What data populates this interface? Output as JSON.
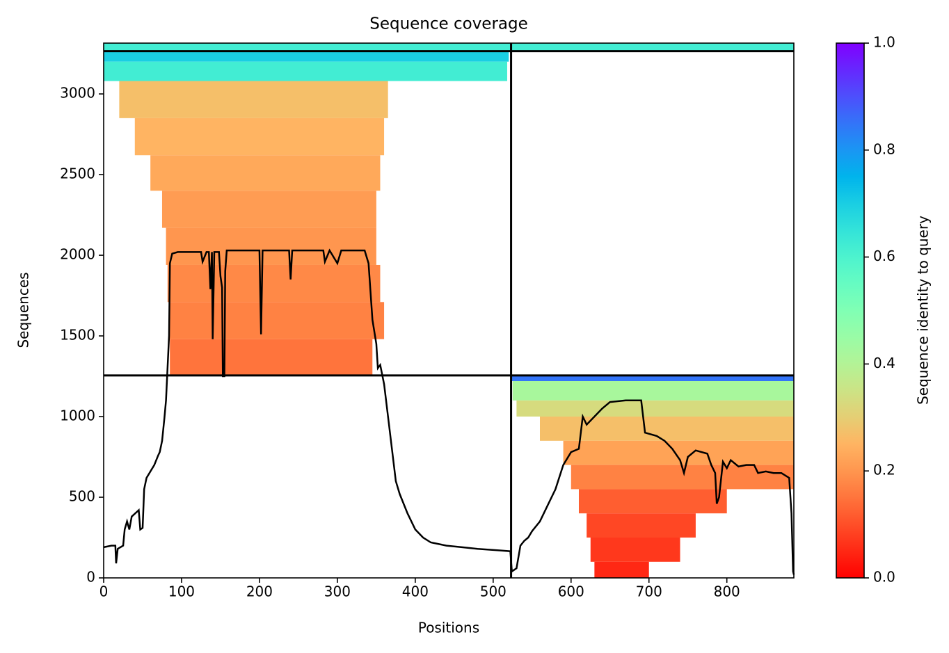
{
  "chart_data": {
    "type": "coverage",
    "title": "Sequence coverage",
    "xlabel": "Positions",
    "ylabel": "Sequences",
    "xlim": [
      0,
      886
    ],
    "ylim": [
      0,
      3315
    ],
    "xticks": [
      0,
      100,
      200,
      300,
      400,
      500,
      600,
      700,
      800
    ],
    "yticks": [
      0,
      500,
      1000,
      1500,
      2000,
      2500,
      3000
    ],
    "colorbar": {
      "label": "Sequence identity to query",
      "lim": [
        0,
        1
      ],
      "ticks": [
        {
          "value": 0,
          "label": "0.0"
        },
        0.2,
        0.4,
        0.6,
        0.8,
        {
          "value": 1,
          "label": "1.0"
        }
      ]
    },
    "bands": [
      {
        "x0": 0,
        "x1": 886,
        "y0": 3265,
        "y1": 3315,
        "identity": 0.62
      },
      {
        "x0": 0,
        "x1": 520,
        "y0": 3200,
        "y1": 3265,
        "identity": 0.7
      },
      {
        "x0": 0,
        "x1": 518,
        "y0": 3080,
        "y1": 3200,
        "identity": 0.62
      },
      {
        "x0": 20,
        "x1": 365,
        "y0": 2850,
        "y1": 3080,
        "identity": 0.27
      },
      {
        "x0": 40,
        "x1": 360,
        "y0": 2620,
        "y1": 2850,
        "identity": 0.25
      },
      {
        "x0": 60,
        "x1": 355,
        "y0": 2400,
        "y1": 2620,
        "identity": 0.23
      },
      {
        "x0": 75,
        "x1": 350,
        "y0": 2170,
        "y1": 2400,
        "identity": 0.21
      },
      {
        "x0": 80,
        "x1": 350,
        "y0": 1940,
        "y1": 2170,
        "identity": 0.2
      },
      {
        "x0": 82,
        "x1": 355,
        "y0": 1710,
        "y1": 1940,
        "identity": 0.18
      },
      {
        "x0": 84,
        "x1": 360,
        "y0": 1480,
        "y1": 1710,
        "identity": 0.17
      },
      {
        "x0": 85,
        "x1": 345,
        "y0": 1255,
        "y1": 1480,
        "identity": 0.15
      },
      {
        "x0": 523,
        "x1": 886,
        "y0": 1220,
        "y1": 1255,
        "identity": 0.85
      },
      {
        "x0": 525,
        "x1": 886,
        "y0": 1100,
        "y1": 1220,
        "identity": 0.42
      },
      {
        "x0": 530,
        "x1": 886,
        "y0": 1000,
        "y1": 1100,
        "identity": 0.33
      },
      {
        "x0": 560,
        "x1": 886,
        "y0": 850,
        "y1": 1000,
        "identity": 0.27
      },
      {
        "x0": 590,
        "x1": 886,
        "y0": 700,
        "y1": 850,
        "identity": 0.22
      },
      {
        "x0": 600,
        "x1": 886,
        "y0": 550,
        "y1": 700,
        "identity": 0.17
      },
      {
        "x0": 610,
        "x1": 800,
        "y0": 400,
        "y1": 550,
        "identity": 0.12
      },
      {
        "x0": 620,
        "x1": 760,
        "y0": 250,
        "y1": 400,
        "identity": 0.09
      },
      {
        "x0": 625,
        "x1": 740,
        "y0": 100,
        "y1": 250,
        "identity": 0.07
      },
      {
        "x0": 630,
        "x1": 700,
        "y0": 0,
        "y1": 100,
        "identity": 0.05
      }
    ],
    "dividers": {
      "x": [
        523
      ],
      "y": [
        1255,
        3265
      ]
    },
    "coverage": {
      "x": [
        0,
        10,
        15,
        16,
        18,
        25,
        27,
        30,
        33,
        36,
        45,
        47,
        50,
        52,
        55,
        60,
        65,
        70,
        72,
        75,
        78,
        80,
        82,
        84,
        85,
        88,
        95,
        125,
        127,
        132,
        135,
        137,
        139,
        140,
        142,
        148,
        150,
        152,
        153,
        155,
        156,
        158,
        200,
        202,
        204,
        238,
        240,
        242,
        282,
        284,
        290,
        300,
        305,
        335,
        340,
        345,
        350,
        352,
        355,
        360,
        365,
        370,
        375,
        380,
        390,
        400,
        410,
        420,
        440,
        460,
        480,
        510,
        522,
        524,
        530,
        535,
        540,
        545,
        550,
        560,
        570,
        575,
        580,
        590,
        600,
        610,
        615,
        620,
        630,
        640,
        650,
        670,
        690,
        695,
        710,
        720,
        730,
        740,
        745,
        750,
        760,
        775,
        780,
        785,
        787,
        790,
        795,
        800,
        805,
        815,
        825,
        835,
        840,
        850,
        860,
        870,
        880,
        883,
        885,
        886
      ],
      "values": [
        190,
        200,
        200,
        90,
        180,
        200,
        300,
        350,
        300,
        380,
        420,
        300,
        310,
        550,
        620,
        660,
        700,
        760,
        780,
        850,
        990,
        1100,
        1300,
        1500,
        1950,
        2010,
        2020,
        2020,
        1960,
        2020,
        2020,
        1790,
        2020,
        1480,
        2020,
        2020,
        1870,
        1800,
        1250,
        1250,
        1900,
        2030,
        2030,
        1510,
        2030,
        2030,
        1850,
        2030,
        2030,
        1960,
        2030,
        1950,
        2030,
        2030,
        1950,
        1600,
        1450,
        1300,
        1320,
        1200,
        1000,
        800,
        600,
        520,
        400,
        300,
        250,
        220,
        200,
        190,
        180,
        170,
        165,
        40,
        60,
        200,
        230,
        250,
        290,
        350,
        450,
        500,
        550,
        700,
        780,
        800,
        1000,
        950,
        1000,
        1050,
        1090,
        1100,
        1100,
        900,
        880,
        850,
        800,
        730,
        650,
        750,
        790,
        770,
        700,
        650,
        460,
        500,
        720,
        680,
        730,
        690,
        700,
        700,
        650,
        660,
        650,
        650,
        620,
        400,
        40,
        20
      ]
    }
  }
}
